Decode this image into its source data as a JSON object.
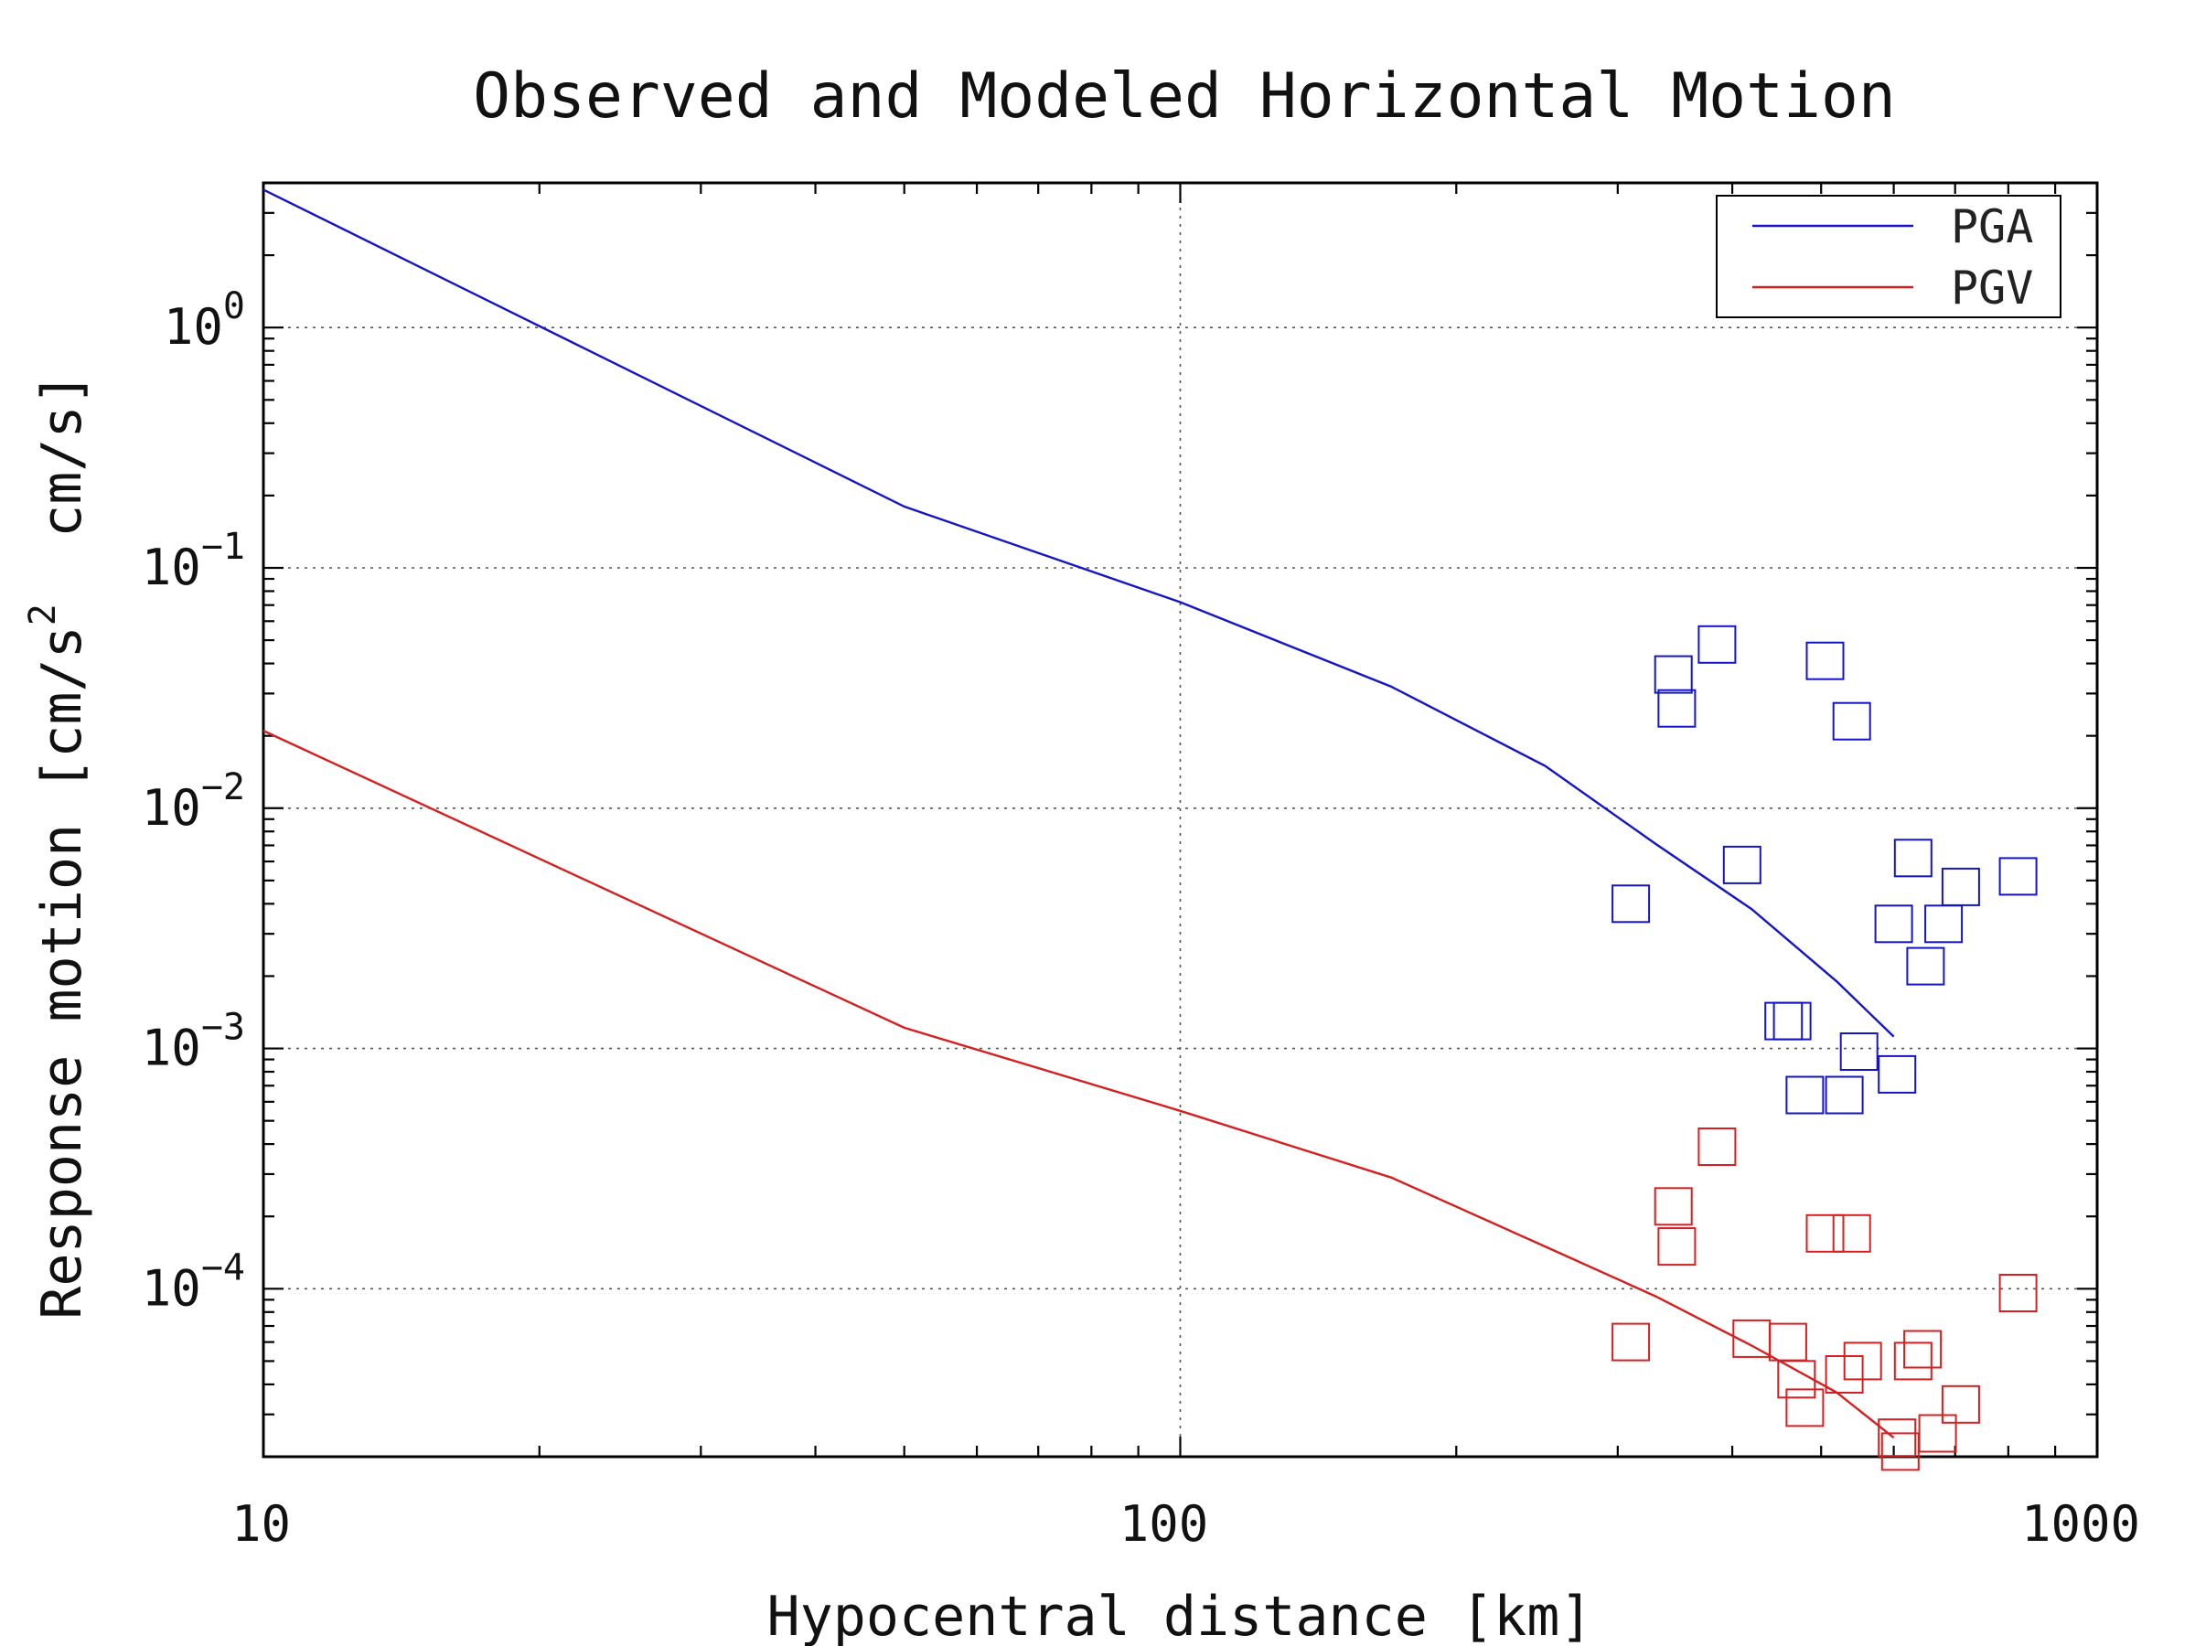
{
  "chart_data": {
    "type": "scatter",
    "title": "Observed and Modeled Horizontal Motion",
    "xlabel": "Hypocentral distance [km]",
    "ylabel": {
      "text": "Response motion [cm/s",
      "superscript": "2",
      "suffix": "  cm/s]"
    },
    "xscale": "log",
    "yscale": "log",
    "xlim": [
      10,
      1000
    ],
    "ylim": [
      2e-05,
      4.0
    ],
    "x_ticks": [
      {
        "value": 10,
        "label": "10"
      },
      {
        "value": 100,
        "label": "100"
      },
      {
        "value": 1000,
        "label": "1000"
      }
    ],
    "y_ticks": [
      {
        "value": 1,
        "base": "10",
        "exp": "0"
      },
      {
        "value": 0.1,
        "base": "10",
        "exp": "−1"
      },
      {
        "value": 0.01,
        "base": "10",
        "exp": "−2"
      },
      {
        "value": 0.001,
        "base": "10",
        "exp": "−3"
      },
      {
        "value": 0.0001,
        "base": "10",
        "exp": "−4"
      }
    ],
    "grid": true,
    "legend": {
      "position": "top-right",
      "entries": [
        {
          "label": "PGA",
          "color": "#1515c4"
        },
        {
          "label": "PGV",
          "color": "#d42020"
        }
      ]
    },
    "model_curves": [
      {
        "name": "PGA",
        "color": "#1515c4",
        "points": [
          [
            10,
            3.75
          ],
          [
            50,
            0.18
          ],
          [
            100,
            0.072
          ],
          [
            170,
            0.032
          ],
          [
            250,
            0.015
          ],
          [
            330,
            0.0071
          ],
          [
            420,
            0.0038
          ],
          [
            520,
            0.0019
          ],
          [
            600,
            0.00112
          ]
        ]
      },
      {
        "name": "PGV",
        "color": "#d42020",
        "points": [
          [
            10,
            0.021
          ],
          [
            50,
            0.00122
          ],
          [
            100,
            0.00055
          ],
          [
            170,
            0.00029
          ],
          [
            250,
            0.00015
          ],
          [
            330,
            9.3e-05
          ],
          [
            420,
            5.8e-05
          ],
          [
            520,
            3.7e-05
          ],
          [
            600,
            2.4e-05
          ]
        ]
      }
    ],
    "observed": [
      {
        "name": "PGA",
        "color": "#1515c4",
        "marker": "square",
        "points": [
          [
            310,
            0.004
          ],
          [
            345,
            0.036
          ],
          [
            348,
            0.026
          ],
          [
            385,
            0.048
          ],
          [
            410,
            0.0058
          ],
          [
            455,
            0.0013
          ],
          [
            465,
            0.0013
          ],
          [
            480,
            0.00064
          ],
          [
            505,
            0.041
          ],
          [
            530,
            0.00064
          ],
          [
            540,
            0.023
          ],
          [
            550,
            0.00097
          ],
          [
            600,
            0.0033
          ],
          [
            605,
            0.00078
          ],
          [
            630,
            0.0062
          ],
          [
            650,
            0.0022
          ],
          [
            680,
            0.0033
          ],
          [
            710,
            0.0047
          ],
          [
            820,
            0.0052
          ]
        ]
      },
      {
        "name": "PGV",
        "color": "#d42020",
        "marker": "square",
        "points": [
          [
            310,
            6e-05
          ],
          [
            345,
            0.00022
          ],
          [
            348,
            0.00015
          ],
          [
            385,
            0.00039
          ],
          [
            420,
            6.2e-05
          ],
          [
            460,
            6e-05
          ],
          [
            470,
            4.2e-05
          ],
          [
            480,
            3.2e-05
          ],
          [
            505,
            0.00017
          ],
          [
            530,
            4.4e-05
          ],
          [
            540,
            0.00017
          ],
          [
            555,
            5e-05
          ],
          [
            605,
            2.4e-05
          ],
          [
            610,
            2.1e-05
          ],
          [
            630,
            5e-05
          ],
          [
            645,
            5.6e-05
          ],
          [
            670,
            2.5e-05
          ],
          [
            710,
            3.3e-05
          ],
          [
            820,
            9.6e-05
          ]
        ]
      }
    ]
  }
}
